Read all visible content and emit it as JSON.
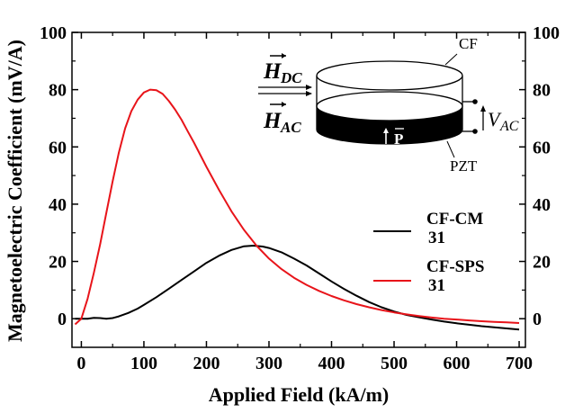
{
  "chart_data": {
    "type": "line",
    "xlabel": "Applied Field (kA/m)",
    "ylabel": "Magnetoelectric Coefficient (mV/A)",
    "xlim": [
      -15,
      710
    ],
    "ylim": [
      -10,
      100
    ],
    "xticks": [
      "0",
      "100",
      "200",
      "300",
      "400",
      "500",
      "600",
      "700"
    ],
    "yticks_left": [
      "0",
      "20",
      "40",
      "60",
      "80",
      "100"
    ],
    "yticks_right": [
      "0",
      "20",
      "40",
      "60",
      "80",
      "100"
    ],
    "grid": false,
    "legend_position": "right",
    "series": [
      {
        "name": "CF-CM",
        "name_sub": "31",
        "color": "#000000",
        "x": [
          -10,
          0,
          10,
          20,
          30,
          40,
          50,
          60,
          75,
          90,
          100,
          120,
          140,
          160,
          180,
          200,
          220,
          240,
          260,
          275,
          290,
          300,
          320,
          340,
          360,
          380,
          400,
          420,
          440,
          460,
          480,
          500,
          520,
          540,
          560,
          580,
          600,
          620,
          640,
          660,
          680,
          700
        ],
        "y": [
          0,
          0,
          0,
          0.3,
          0.2,
          0,
          0.2,
          0.8,
          2,
          3.5,
          4.8,
          7.5,
          10.5,
          13.5,
          16.5,
          19.5,
          22,
          24,
          25.3,
          25.5,
          25.2,
          24.7,
          23.2,
          21,
          18.6,
          15.8,
          13,
          10.4,
          8,
          5.8,
          4,
          2.5,
          1.3,
          0.5,
          -0.3,
          -1,
          -1.6,
          -2.1,
          -2.6,
          -3,
          -3.4,
          -3.8
        ]
      },
      {
        "name": "CF-SPS",
        "name_sub": "31",
        "color": "#e8141a",
        "x": [
          -10,
          0,
          10,
          20,
          30,
          40,
          50,
          60,
          70,
          80,
          90,
          100,
          110,
          120,
          130,
          140,
          150,
          160,
          170,
          180,
          200,
          220,
          240,
          260,
          280,
          300,
          320,
          340,
          360,
          380,
          400,
          420,
          440,
          460,
          480,
          500,
          520,
          540,
          560,
          580,
          600,
          620,
          640,
          660,
          680,
          700
        ],
        "y": [
          -2,
          0,
          7,
          16,
          26,
          37,
          48,
          58,
          66.5,
          72.5,
          76.5,
          79,
          80,
          79.8,
          78.5,
          76,
          73,
          69.5,
          65.5,
          61.5,
          53,
          45,
          37.5,
          31,
          25.5,
          21,
          17.3,
          14.3,
          11.8,
          9.7,
          7.9,
          6.4,
          5.1,
          4,
          3,
          2.2,
          1.5,
          0.9,
          0.4,
          0,
          -0.3,
          -0.6,
          -0.9,
          -1.1,
          -1.3,
          -1.5
        ]
      }
    ]
  },
  "inset": {
    "hdc_label": "H",
    "hdc_sub": "DC",
    "hac_label": "H",
    "hac_sub": "AC",
    "cf_label": "CF",
    "pzt_label": "PZT",
    "p_label": "P",
    "vac_label": "V",
    "vac_sub": "AC"
  }
}
